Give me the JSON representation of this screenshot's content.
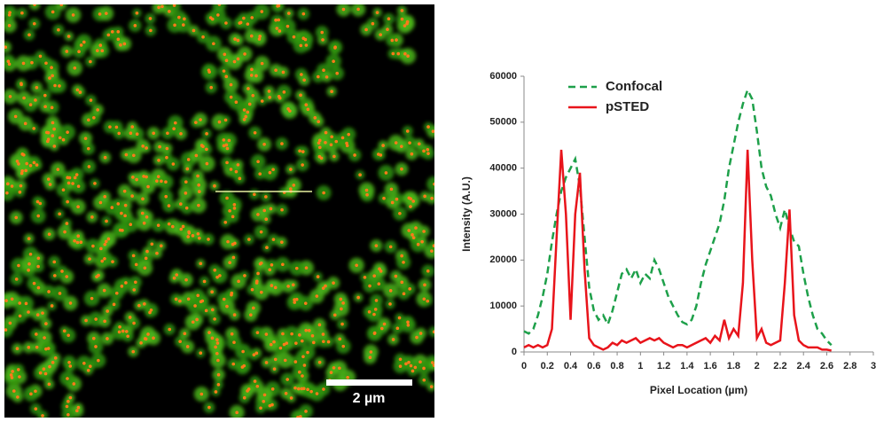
{
  "image": {
    "scale_bar_label": "2 µm"
  },
  "chart_data": {
    "type": "line",
    "xlabel": "Pixel Location (µm)",
    "ylabel": "Intensity (A.U.)",
    "x": [
      0,
      0.04,
      0.08,
      0.12,
      0.16,
      0.2,
      0.24,
      0.28,
      0.32,
      0.36,
      0.4,
      0.44,
      0.48,
      0.52,
      0.56,
      0.6,
      0.64,
      0.68,
      0.72,
      0.76,
      0.8,
      0.84,
      0.88,
      0.92,
      0.96,
      1.0,
      1.04,
      1.08,
      1.12,
      1.16,
      1.2,
      1.24,
      1.28,
      1.32,
      1.36,
      1.4,
      1.44,
      1.48,
      1.52,
      1.56,
      1.6,
      1.64,
      1.68,
      1.72,
      1.76,
      1.8,
      1.84,
      1.88,
      1.92,
      1.96,
      2.0,
      2.04,
      2.08,
      2.12,
      2.16,
      2.2,
      2.24,
      2.28,
      2.32,
      2.36,
      2.4,
      2.44,
      2.48,
      2.52,
      2.56,
      2.6,
      2.64
    ],
    "series": [
      {
        "name": "Confocal",
        "color": "#1ea04a",
        "dashed": true,
        "values": [
          4500,
          4000,
          5000,
          8000,
          12000,
          17000,
          24000,
          30000,
          35000,
          38000,
          40000,
          42000,
          36000,
          25000,
          14000,
          9000,
          7000,
          8000,
          6000,
          9000,
          13000,
          17000,
          18000,
          16000,
          18000,
          15000,
          17000,
          16000,
          20000,
          18000,
          15000,
          12000,
          10000,
          8000,
          6500,
          6000,
          7000,
          10000,
          15000,
          19000,
          22000,
          25000,
          28000,
          33000,
          40000,
          45000,
          50000,
          54000,
          57000,
          55000,
          48000,
          40000,
          36000,
          34000,
          30000,
          27000,
          31000,
          27000,
          24000,
          23000,
          17000,
          12000,
          8000,
          5000,
          4000,
          2500,
          1500
        ]
      },
      {
        "name": "pSTED",
        "color": "#e8141b",
        "dashed": false,
        "values": [
          1000,
          1500,
          1000,
          1500,
          1000,
          1500,
          5000,
          25000,
          44000,
          30000,
          7000,
          30000,
          39000,
          18000,
          3000,
          1500,
          1000,
          500,
          1000,
          2000,
          1500,
          2500,
          2000,
          2500,
          3000,
          2000,
          2500,
          3000,
          2500,
          3000,
          2000,
          1500,
          1000,
          1500,
          1500,
          1000,
          1500,
          2000,
          2500,
          3000,
          2000,
          3500,
          2500,
          7000,
          3000,
          5000,
          3500,
          15000,
          44000,
          20000,
          3000,
          5000,
          2000,
          1500,
          2000,
          2500,
          15000,
          31000,
          8000,
          2500,
          1500,
          1000,
          1000,
          1000,
          500,
          500,
          300
        ]
      }
    ],
    "xlim": [
      0,
      3
    ],
    "xticks": [
      0,
      0.2,
      0.4,
      0.6,
      0.8,
      1,
      1.2,
      1.4,
      1.6,
      1.8,
      2,
      2.2,
      2.4,
      2.6,
      2.8,
      3
    ],
    "ylim": [
      0,
      60000
    ],
    "yticks": [
      0,
      10000,
      20000,
      30000,
      40000,
      50000,
      60000
    ],
    "grid": false,
    "legend": "upper left"
  }
}
